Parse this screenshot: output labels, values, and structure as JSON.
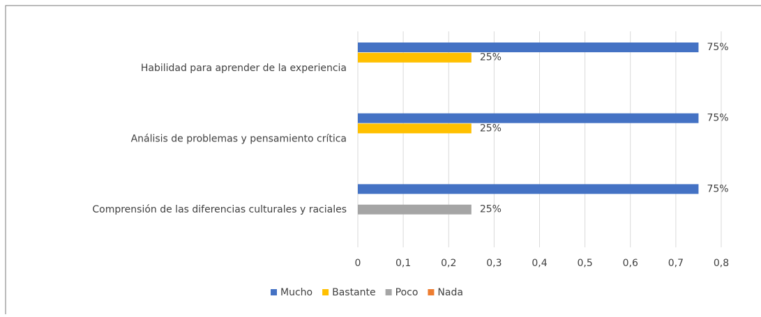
{
  "chart_data": {
    "type": "bar",
    "orientation": "horizontal",
    "categories": [
      "Habilidad para aprender de la experiencia",
      "Análisis de problemas y pensamiento crítica",
      "Comprensión de las diferencias culturales y raciales"
    ],
    "series": [
      {
        "name": "Mucho",
        "color": "#4472c4",
        "values": [
          0.75,
          0.75,
          0.75
        ],
        "value_labels": [
          "75%",
          "75%",
          "75%"
        ]
      },
      {
        "name": "Bastante",
        "color": "#ffc000",
        "values": [
          0.25,
          0.25,
          null
        ],
        "value_labels": [
          "25%",
          "25%",
          null
        ]
      },
      {
        "name": "Poco",
        "color": "#a5a5a5",
        "values": [
          null,
          null,
          0.25
        ],
        "value_labels": [
          null,
          null,
          "25%"
        ]
      },
      {
        "name": "Nada",
        "color": "#ed7d31",
        "values": [
          null,
          null,
          null
        ],
        "value_labels": [
          null,
          null,
          null
        ]
      }
    ],
    "xlim": [
      0,
      0.8
    ],
    "xticks": [
      0,
      {
        "value": 0.1,
        "label": "0,1"
      },
      {
        "value": 0.2,
        "label": "0,2"
      },
      {
        "value": 0.3,
        "label": "0,3"
      },
      {
        "value": 0.4,
        "label": "0,4"
      },
      {
        "value": 0.5,
        "label": "0,5"
      },
      {
        "value": 0.6,
        "label": "0,6"
      },
      {
        "value": 0.7,
        "label": "0,7"
      },
      {
        "value": 0.8,
        "label": "0,8"
      }
    ],
    "grid": true,
    "legend": "bottom"
  }
}
